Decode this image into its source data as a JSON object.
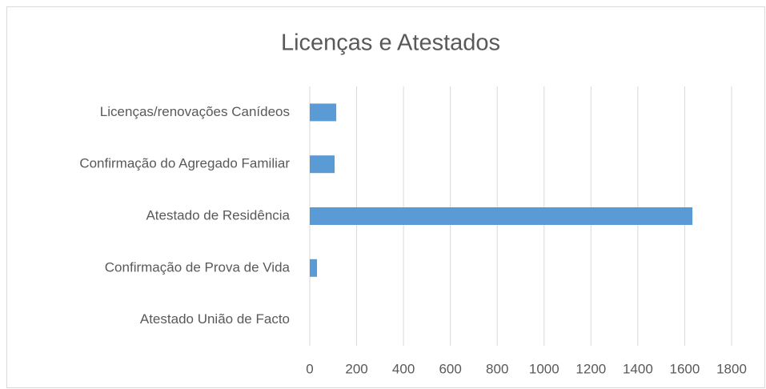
{
  "chart_data": {
    "type": "barh",
    "title": "Licenças e Atestados",
    "categories": [
      "Licenças/renovações Canídeos",
      "Confirmação do Agregado Familiar",
      "Atestado de Residência",
      "Confirmação de Prova de Vida",
      "Atestado União de Facto"
    ],
    "values": [
      113,
      106,
      1633,
      31,
      0
    ],
    "color": "#5b9bd5",
    "xlim": [
      0,
      1800
    ],
    "xticks": [
      0,
      200,
      400,
      600,
      800,
      1000,
      1200,
      1400,
      1600,
      1800
    ],
    "grid": true
  }
}
